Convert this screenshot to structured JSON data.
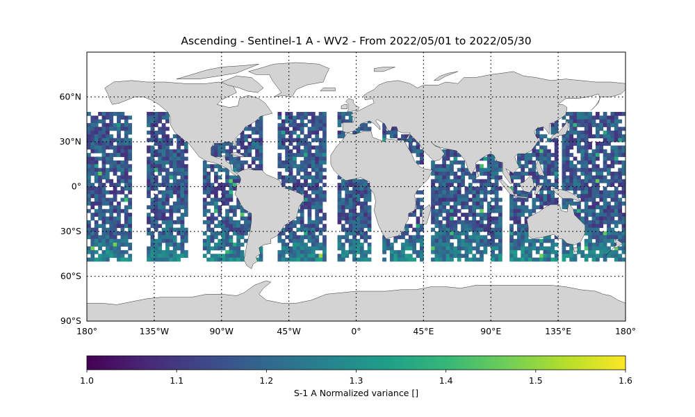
{
  "map": {
    "title": "Ascending - Sentinel-1 A - WV2 - From 2022/05/01 to 2022/05/30",
    "projection": "PlateCarree",
    "extent": {
      "lon": [
        -180,
        180
      ],
      "lat": [
        -90,
        90
      ]
    },
    "land_color": "#d3d3d3",
    "coastline_color": "#000000",
    "gridline_style": "dotted",
    "lat_ticks": [
      {
        "value": 60,
        "label": "60°N"
      },
      {
        "value": 30,
        "label": "30°N"
      },
      {
        "value": 0,
        "label": "0°"
      },
      {
        "value": -30,
        "label": "30°S"
      },
      {
        "value": -60,
        "label": "60°S"
      },
      {
        "value": -90,
        "label": "90°S"
      }
    ],
    "lon_ticks": [
      {
        "value": -180,
        "label": "180°"
      },
      {
        "value": -135,
        "label": "135°W"
      },
      {
        "value": -90,
        "label": "90°W"
      },
      {
        "value": -45,
        "label": "45°W"
      },
      {
        "value": 0,
        "label": "0°"
      },
      {
        "value": 45,
        "label": "45°E"
      },
      {
        "value": 90,
        "label": "90°E"
      },
      {
        "value": 135,
        "label": "135°E"
      },
      {
        "value": 180,
        "label": "180°"
      }
    ],
    "data_coverage": {
      "lat_range": [
        -50,
        50
      ],
      "variable": "S-1 A Normalized variance",
      "colormap": "viridis"
    }
  },
  "colorbar": {
    "label": "S-1 A Normalized variance []",
    "range": [
      1.0,
      1.6
    ],
    "ticks": [
      "1.0",
      "1.1",
      "1.2",
      "1.3",
      "1.4",
      "1.5",
      "1.6"
    ],
    "colormap_stops": [
      "#440154",
      "#482878",
      "#3e4989",
      "#31688e",
      "#26828e",
      "#1f9e89",
      "#35b779",
      "#6ece58",
      "#b5de2b",
      "#fde725"
    ]
  }
}
